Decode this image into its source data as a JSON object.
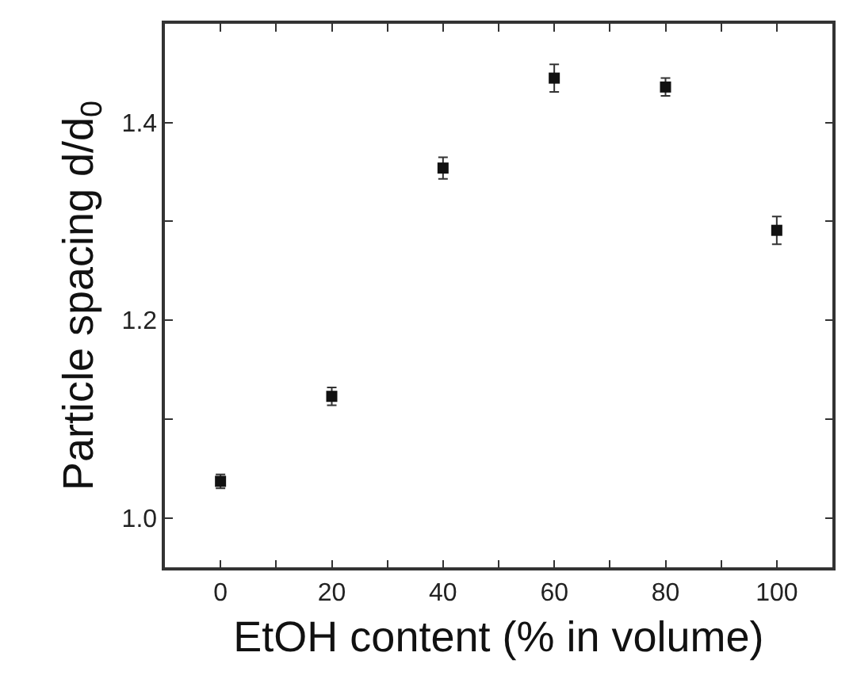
{
  "chart_data": {
    "type": "scatter",
    "xlabel": "EtOH content (% in volume)",
    "ylabel": "Particle spacing d/d$_{0}$",
    "x": [
      0,
      20,
      40,
      60,
      80,
      100
    ],
    "series": [
      {
        "color": "#111111",
        "values": [
          1.037,
          1.123,
          1.354,
          1.445,
          1.436,
          1.291
        ],
        "errors": [
          0.007,
          0.009,
          0.011,
          0.014,
          0.009,
          0.014
        ]
      }
    ],
    "marker": "square",
    "xlim": [
      -10,
      110
    ],
    "ylim": [
      0.95,
      1.5
    ],
    "xticks": [
      {
        "value": -10,
        "label": null
      },
      0,
      {
        "value": 10,
        "label": null
      },
      20,
      {
        "value": 30,
        "label": null
      },
      40,
      {
        "value": 50,
        "label": null
      },
      60,
      {
        "value": 70,
        "label": null
      },
      80,
      {
        "value": 90,
        "label": null
      },
      100,
      {
        "value": 110,
        "label": null
      }
    ],
    "yticks": [
      {
        "value": 1.0,
        "label": "1.0"
      },
      {
        "value": 1.1,
        "label": null
      },
      {
        "value": 1.2,
        "label": "1.2"
      },
      {
        "value": 1.3,
        "label": null
      },
      {
        "value": 1.4,
        "label": "1.4"
      },
      {
        "value": 1.5,
        "label": null
      }
    ]
  }
}
